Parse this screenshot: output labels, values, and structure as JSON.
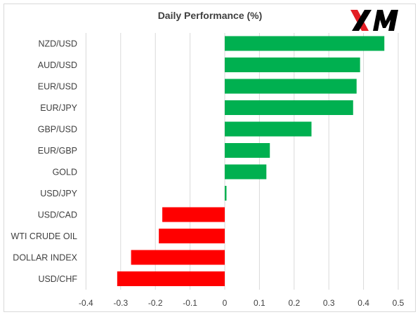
{
  "chart_data": {
    "type": "bar",
    "orientation": "horizontal",
    "title": "Daily Performance (%)",
    "xlabel": "",
    "ylabel": "",
    "categories": [
      "NZD/USD",
      "AUD/USD",
      "EUR/USD",
      "EUR/JPY",
      "GBP/USD",
      "EUR/GBP",
      "GOLD",
      "USD/JPY",
      "USD/CAD",
      "WTI CRUDE OIL",
      "DOLLAR INDEX",
      "USD/CHF"
    ],
    "values": [
      0.46,
      0.39,
      0.38,
      0.37,
      0.25,
      0.13,
      0.12,
      0.005,
      -0.18,
      -0.19,
      -0.27,
      -0.31
    ],
    "xlim": [
      -0.4,
      0.5
    ],
    "xticks": [
      "-0.4",
      "-0.3",
      "-0.2",
      "-0.1",
      "0",
      "0.1",
      "0.2",
      "0.3",
      "0.4",
      "0.5"
    ],
    "grid": "vertical",
    "legend": "none",
    "colors": {
      "positive": "#00b050",
      "negative": "#ff0000",
      "grid": "#d9d9d9",
      "text": "#404040"
    }
  },
  "logo": {
    "text": "XM",
    "color": "#000000",
    "accent": "#e31e24"
  }
}
